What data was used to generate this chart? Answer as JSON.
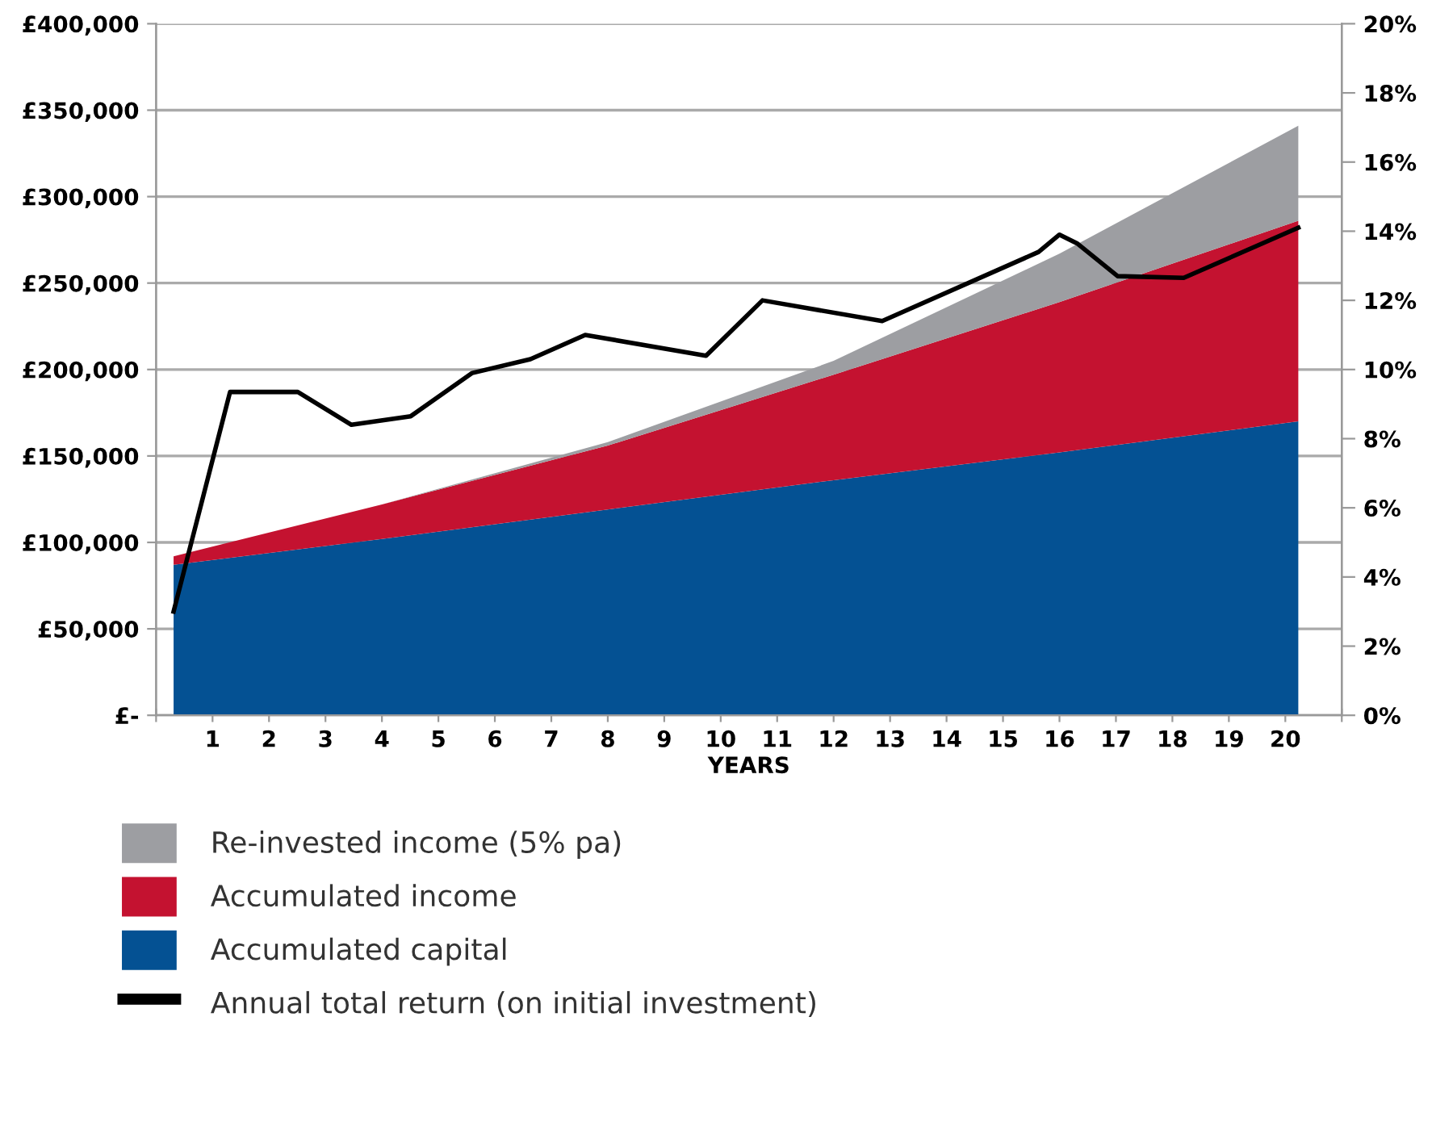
{
  "chart_data": {
    "type": "area",
    "stacked": true,
    "xlabel": "YEARS",
    "x": [
      0.31,
      4,
      8,
      12,
      16,
      20.23
    ],
    "xlim": [
      0,
      21
    ],
    "xticks": [
      {
        "value": 0,
        "label": null
      },
      1,
      2,
      3,
      4,
      5,
      6,
      7,
      8,
      9,
      10,
      11,
      12,
      13,
      14,
      15,
      16,
      17,
      18,
      19,
      20,
      {
        "value": 21,
        "label": null
      }
    ],
    "ylim": [
      0,
      400000
    ],
    "yticks": [
      {
        "value": 0,
        "label": "£-"
      },
      {
        "value": 50000,
        "label": "£50,000"
      },
      {
        "value": 100000,
        "label": "£100,000"
      },
      {
        "value": 150000,
        "label": "£150,000"
      },
      {
        "value": 200000,
        "label": "£200,000"
      },
      {
        "value": 250000,
        "label": "£250,000"
      },
      {
        "value": 300000,
        "label": "£300,000"
      },
      {
        "value": 350000,
        "label": "£350,000"
      },
      {
        "value": 400000,
        "label": "£400,000"
      }
    ],
    "y2lim": [
      0,
      20
    ],
    "y2ticks": [
      {
        "value": 0,
        "label": "0%"
      },
      {
        "value": 2,
        "label": "2%"
      },
      {
        "value": 4,
        "label": "4%"
      },
      {
        "value": 6,
        "label": "6%"
      },
      {
        "value": 8,
        "label": "8%"
      },
      {
        "value": 10,
        "label": "10%"
      },
      {
        "value": 12,
        "label": "12%"
      },
      {
        "value": 14,
        "label": "14%"
      },
      {
        "value": 16,
        "label": "16%"
      },
      {
        "value": 18,
        "label": "18%"
      },
      {
        "value": 20,
        "label": "20%"
      }
    ],
    "grid": "y",
    "legend": "bottom",
    "series": [
      {
        "name": "Accumulated capital",
        "color": "#045193",
        "values": [
          87000,
          102000,
          119000,
          136000,
          152000,
          170000
        ]
      },
      {
        "name": "Accumulated income",
        "color": "#c41230",
        "values": [
          5000,
          20000,
          37000,
          61000,
          87000,
          116000
        ]
      },
      {
        "name": "Re-invested income (5% pa)",
        "color": "#9d9ea2",
        "values": [
          0,
          0,
          2000,
          8000,
          28000,
          55000
        ]
      },
      {
        "name": "Annual total return (on initial investment)",
        "type": "line",
        "axis": "y2",
        "color": "#000000",
        "x": [
          0.31,
          1.31,
          2.51,
          3.46,
          4.51,
          5.6,
          6.63,
          7.6,
          9.74,
          10.74,
          12.86,
          15.63,
          16.0,
          16.31,
          17.03,
          18.2,
          20.23
        ],
        "values": [
          3.0,
          9.35,
          9.35,
          8.4,
          8.65,
          9.9,
          10.3,
          11.0,
          10.4,
          12.0,
          11.4,
          13.4,
          13.9,
          13.65,
          12.7,
          12.65,
          14.1
        ]
      }
    ]
  }
}
